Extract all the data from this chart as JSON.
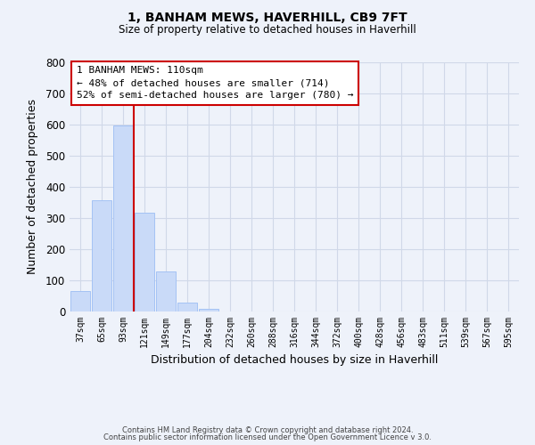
{
  "title": "1, BANHAM MEWS, HAVERHILL, CB9 7FT",
  "subtitle": "Size of property relative to detached houses in Haverhill",
  "xlabel": "Distribution of detached houses by size in Haverhill",
  "ylabel": "Number of detached properties",
  "bar_labels": [
    "37sqm",
    "65sqm",
    "93sqm",
    "121sqm",
    "149sqm",
    "177sqm",
    "204sqm",
    "232sqm",
    "260sqm",
    "288sqm",
    "316sqm",
    "344sqm",
    "372sqm",
    "400sqm",
    "428sqm",
    "456sqm",
    "483sqm",
    "511sqm",
    "539sqm",
    "567sqm",
    "595sqm"
  ],
  "bar_values": [
    65,
    358,
    597,
    318,
    130,
    30,
    8,
    0,
    0,
    0,
    0,
    0,
    0,
    0,
    0,
    0,
    0,
    0,
    0,
    0,
    0
  ],
  "bar_color": "#c9daf8",
  "bar_edge_color": "#a4c2f4",
  "ylim": [
    0,
    800
  ],
  "yticks": [
    0,
    100,
    200,
    300,
    400,
    500,
    600,
    700,
    800
  ],
  "red_line_color": "#cc0000",
  "annotation_title": "1 BANHAM MEWS: 110sqm",
  "annotation_line1": "← 48% of detached houses are smaller (714)",
  "annotation_line2": "52% of semi-detached houses are larger (780) →",
  "annotation_box_color": "#ffffff",
  "annotation_box_edge": "#cc0000",
  "grid_color": "#d0d8e8",
  "background_color": "#eef2fa",
  "footer_line1": "Contains HM Land Registry data © Crown copyright and database right 2024.",
  "footer_line2": "Contains public sector information licensed under the Open Government Licence v 3.0."
}
